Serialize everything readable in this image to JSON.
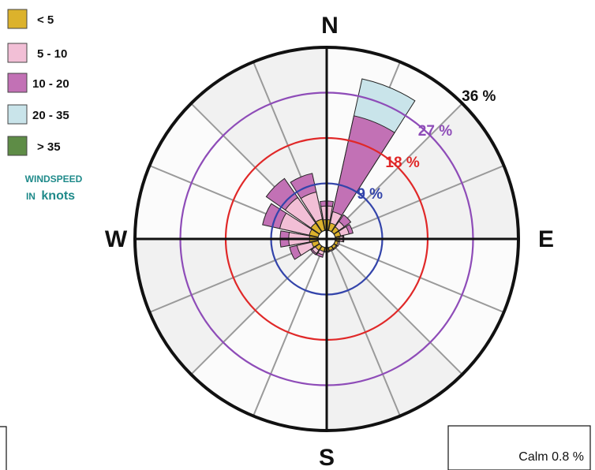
{
  "chart_data": {
    "type": "wind-rose",
    "directions": [
      "N",
      "NNE",
      "NE",
      "ENE",
      "E",
      "ESE",
      "SE",
      "SSE",
      "S",
      "SSW",
      "SW",
      "WSW",
      "W",
      "WNW",
      "NW",
      "NNW"
    ],
    "speed_bins": [
      {
        "label": "< 5",
        "color": "#dcb22c"
      },
      {
        "label": "5 - 10",
        "color": "#f2bfd6"
      },
      {
        "label": "10 - 20",
        "color": "#c271b5"
      },
      {
        "label": "20 - 35",
        "color": "#c9e4ea"
      },
      {
        "label": "> 35",
        "color": "#5e8c46"
      }
    ],
    "legend_title_line1": "WINDSPEED",
    "legend_title_line2_prefix": "IN",
    "legend_title_line2_unit": "knots",
    "cardinals": {
      "north": "N",
      "east": "E",
      "south": "S",
      "west": "W"
    },
    "rings": [
      {
        "value": 9,
        "label": "9 %",
        "color": "#3344aa"
      },
      {
        "value": 18,
        "label": "18 %",
        "color": "#e02828"
      },
      {
        "value": 27,
        "label": "27 %",
        "color": "#8e4cb8"
      },
      {
        "value": 36,
        "label": "36 %",
        "color": "#111111"
      }
    ],
    "r_max": 36,
    "cumulative_values": [
      [
        1.8,
        4.5,
        5.5,
        0,
        0
      ],
      [
        1.2,
        3.5,
        23.0,
        30.5,
        0
      ],
      [
        0.9,
        2.2,
        3.8,
        0,
        0
      ],
      [
        0.8,
        2.5,
        3.3,
        0,
        0
      ],
      [
        0.5,
        1.2,
        1.4,
        0,
        0
      ],
      [
        0.3,
        0.6,
        0,
        0,
        0
      ],
      [
        0.3,
        0.5,
        0,
        0,
        0
      ],
      [
        0.3,
        0.5,
        0,
        0,
        0
      ],
      [
        0.4,
        0.6,
        0,
        0,
        0
      ],
      [
        0.5,
        1.2,
        1.7,
        0,
        0
      ],
      [
        0.7,
        1.5,
        1.8,
        0,
        0
      ],
      [
        1.0,
        4.0,
        5.5,
        0,
        0
      ],
      [
        1.4,
        5.5,
        7.2,
        0,
        0
      ],
      [
        1.5,
        7.5,
        11.0,
        0,
        0
      ],
      [
        1.8,
        8.0,
        12.6,
        0,
        0
      ],
      [
        2.0,
        7.5,
        11.3,
        0,
        0
      ]
    ],
    "calm": "Calm 0.8 %"
  }
}
